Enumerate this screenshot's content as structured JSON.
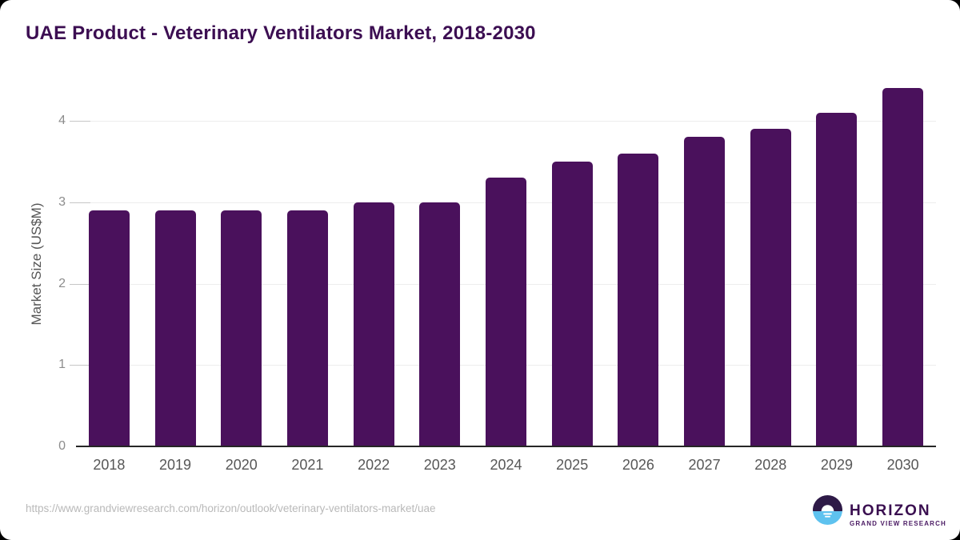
{
  "header": {
    "title": "UAE Product - Veterinary Ventilators Market, 2018-2030"
  },
  "chart_data": {
    "type": "bar",
    "title": "UAE Product - Veterinary Ventilators Market, 2018-2030",
    "categories": [
      "2018",
      "2019",
      "2020",
      "2021",
      "2022",
      "2023",
      "2024",
      "2025",
      "2026",
      "2027",
      "2028",
      "2029",
      "2030"
    ],
    "values": [
      2.9,
      2.9,
      2.9,
      2.9,
      3.0,
      3.0,
      3.3,
      3.5,
      3.6,
      3.8,
      3.9,
      4.1,
      4.4
    ],
    "series_name": "Market Size",
    "xlabel": "",
    "ylabel": "Market Size (US$M)",
    "ylim": [
      0,
      4.5
    ],
    "yticks": [
      0,
      1,
      2,
      3,
      4
    ],
    "grid": true,
    "legend": "none",
    "bar_color": "#4a115c"
  },
  "footer": {
    "source_url": "https://www.grandviewresearch.com/horizon/outlook/veterinary-ventilators-market/uae",
    "logo": {
      "primary": "HORIZON",
      "secondary": "GRAND VIEW RESEARCH",
      "icon": "horizon-sun-icon",
      "icon_purple": "#2e1a47",
      "icon_blue": "#5ec2ef"
    }
  },
  "colors": {
    "title_text": "#3c0e52",
    "bar": "#4a115c",
    "axis_line": "#262626",
    "gridline": "#ededed",
    "y_tick_label": "#8c8c8c",
    "x_tick_label": "#575757",
    "url_text": "#b9b9b9"
  }
}
